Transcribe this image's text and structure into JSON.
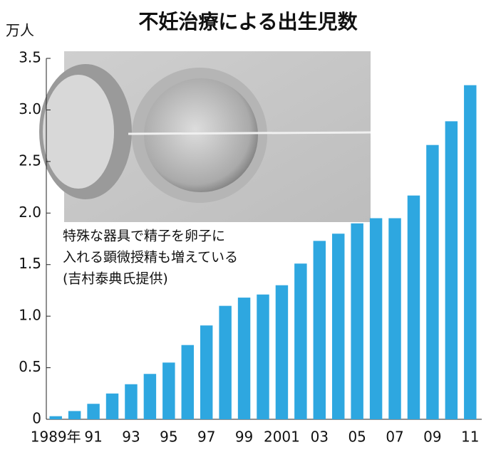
{
  "chart_data": {
    "type": "bar",
    "title": "不妊治療による出生児数",
    "y_label": "万人",
    "categories": [
      "1989年",
      null,
      "91",
      null,
      "93",
      null,
      "95",
      null,
      "97",
      null,
      "99",
      null,
      "2001",
      null,
      "03",
      null,
      "05",
      null,
      "07",
      null,
      "09",
      null,
      "11"
    ],
    "values": [
      0.03,
      0.08,
      0.15,
      0.25,
      0.34,
      0.44,
      0.55,
      0.72,
      0.91,
      1.1,
      1.18,
      1.21,
      1.3,
      1.51,
      1.73,
      1.8,
      1.9,
      1.95,
      1.95,
      2.17,
      2.66,
      2.89,
      3.24
    ],
    "color": "#2ea7e0",
    "ylim": [
      0,
      3.5
    ],
    "yticks": [
      0,
      0.5,
      {
        "value": 1,
        "label": "1.0"
      },
      1.5,
      {
        "value": 2,
        "label": "2.0"
      },
      2.5,
      {
        "value": 3,
        "label": "3.0"
      },
      3.5
    ],
    "grid": false,
    "annotations": [
      "特殊な器具で精子を卵子に",
      "入れる顕微授精も増えている",
      "(吉村泰典氏提供)"
    ]
  }
}
